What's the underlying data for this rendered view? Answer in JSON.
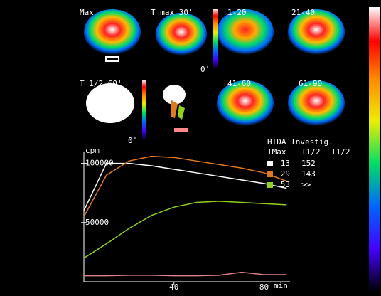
{
  "image_labels": [
    "Max",
    "T max 30'",
    "1-20",
    "21-40",
    "T 1/2 60'",
    "41-60",
    "61-90",
    "0'",
    "0'"
  ],
  "chart_data": {
    "type": "line",
    "y_label": "cpm",
    "x_label": "min",
    "x": [
      0,
      10,
      20,
      30,
      40,
      50,
      60,
      70,
      80,
      90
    ],
    "series": [
      {
        "color": "#ffffff",
        "values": [
          60000,
          100000,
          100000,
          98000,
          95000,
          92000,
          89000,
          86000,
          83000,
          79000
        ]
      },
      {
        "color": "#e07a20",
        "values": [
          55000,
          90000,
          102000,
          106000,
          105000,
          102000,
          99000,
          96000,
          92000,
          85000
        ]
      },
      {
        "color": "#8fd020",
        "values": [
          20000,
          32000,
          45000,
          56000,
          63000,
          67000,
          68000,
          67000,
          66000,
          65000
        ]
      },
      {
        "color": "#e08080",
        "values": [
          5000,
          5000,
          5500,
          5500,
          5000,
          5000,
          5500,
          8000,
          6000,
          6000
        ]
      }
    ],
    "xlim": [
      0,
      91.5
    ],
    "ylim": [
      0,
      110000
    ],
    "xticks": [
      40,
      80
    ],
    "yticks": [
      50000,
      100000
    ]
  },
  "legend_table": {
    "title": "HIDA Investig.",
    "header": [
      "TMax",
      "T1/2",
      "T1/2"
    ],
    "rows": [
      [
        "13",
        "152"
      ],
      [
        "29",
        "143"
      ],
      [
        "53",
        ">>"
      ]
    ]
  }
}
